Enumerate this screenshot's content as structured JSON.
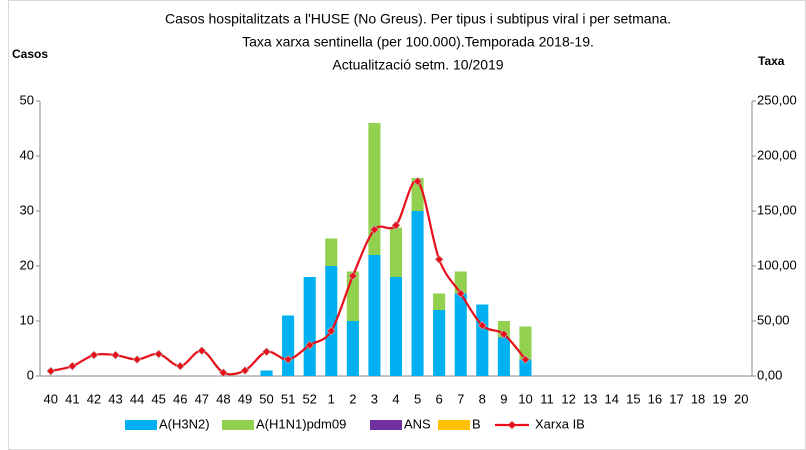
{
  "chart_data": {
    "type": "bar",
    "title": [
      "Casos hospitalitzats a l'HUSE (No Greus). Per tipus i subtipus  viral i per setmana.",
      "Taxa xarxa sentinella (per 100.000).Temporada 2018-19.",
      "Actualització setm. 10/2019"
    ],
    "y_label": "Casos",
    "y2_label": "Taxa",
    "categories": [
      "40",
      "41",
      "42",
      "43",
      "44",
      "45",
      "46",
      "47",
      "48",
      "49",
      "50",
      "51",
      "52",
      "1",
      "2",
      "3",
      "4",
      "5",
      "6",
      "7",
      "8",
      "9",
      "10",
      "11",
      "12",
      "13",
      "14",
      "15",
      "16",
      "17",
      "18",
      "19",
      "20"
    ],
    "stacked": true,
    "grid": false,
    "legend": "bottom",
    "ylim": [
      0,
      50
    ],
    "yticks": [
      0,
      10,
      20,
      30,
      40,
      50
    ],
    "y2lim": [
      0,
      250
    ],
    "y2ticks": [
      {
        "value": 0,
        "label": "0,00"
      },
      {
        "value": 50,
        "label": "50,00"
      },
      {
        "value": 100,
        "label": "100,00"
      },
      {
        "value": 150,
        "label": "150,00"
      },
      {
        "value": 200,
        "label": "200,00"
      },
      {
        "value": 250,
        "label": "250,00"
      }
    ],
    "series": [
      {
        "name": "A(H3N2)",
        "color": "#00b0f0",
        "values": [
          0,
          0,
          0,
          0,
          0,
          0,
          0,
          0,
          0,
          0,
          1,
          11,
          18,
          20,
          10,
          22,
          18,
          30,
          12,
          15,
          13,
          7,
          3,
          0,
          0,
          0,
          0,
          0,
          0,
          0,
          0,
          0,
          0
        ]
      },
      {
        "name": "A(H1N1)pdm09",
        "color": "#92d050",
        "values": [
          0,
          0,
          0,
          0,
          0,
          0,
          0,
          0,
          0,
          0,
          0,
          0,
          0,
          5,
          9,
          24,
          9,
          6,
          3,
          4,
          0,
          3,
          6,
          0,
          0,
          0,
          0,
          0,
          0,
          0,
          0,
          0,
          0
        ]
      },
      {
        "name": "ANS",
        "color": "#7030a0",
        "values": [
          0,
          0,
          0,
          0,
          0,
          0,
          0,
          0,
          0,
          0,
          0,
          0,
          0,
          0,
          0,
          0,
          0,
          0,
          0,
          0,
          0,
          0,
          0,
          0,
          0,
          0,
          0,
          0,
          0,
          0,
          0,
          0,
          0
        ]
      },
      {
        "name": "B",
        "color": "#ffc000",
        "values": [
          0,
          0,
          0,
          0,
          0,
          0,
          0,
          0,
          0,
          0,
          0,
          0,
          0,
          0,
          0,
          0,
          0,
          0,
          0,
          0,
          0,
          0,
          0,
          0,
          0,
          0,
          0,
          0,
          0,
          0,
          0,
          0,
          0
        ]
      },
      {
        "name": "Xarxa IB",
        "color": "#e8101a",
        "type": "line",
        "axis": "y2",
        "values": [
          4.5,
          9,
          19,
          19,
          15,
          20,
          9,
          23,
          3,
          5,
          22,
          15,
          28,
          41,
          91,
          133,
          137,
          177,
          106,
          75,
          46,
          38,
          15,
          null,
          null,
          null,
          null,
          null,
          null,
          null,
          null,
          null,
          null
        ]
      }
    ]
  }
}
